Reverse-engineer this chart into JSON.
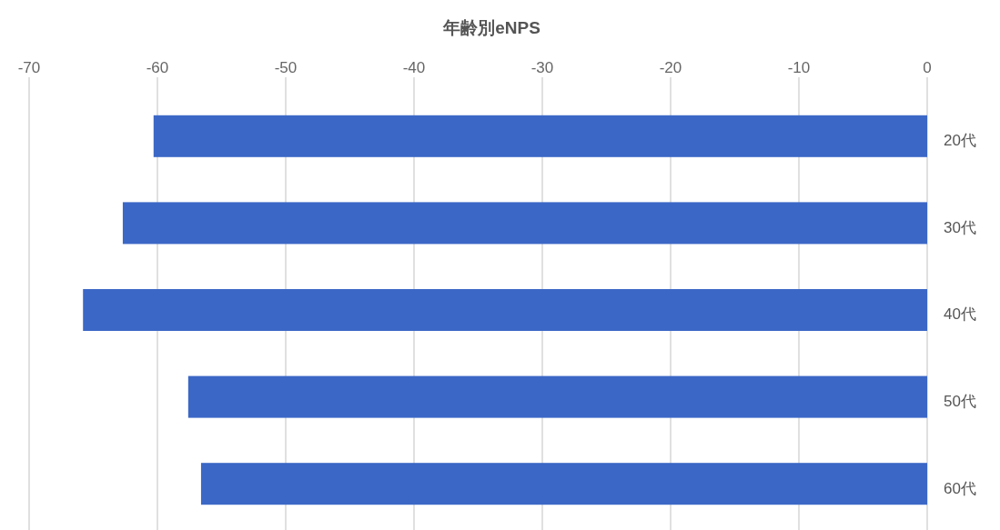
{
  "chart_data": {
    "type": "bar",
    "orientation": "horizontal",
    "title": "年齢別eNPS",
    "categories": [
      "20代",
      "30代",
      "40代",
      "50代",
      "60代"
    ],
    "values": [
      -60.3,
      -62.7,
      -65.8,
      -57.6,
      -56.6
    ],
    "color": "#3b67c6",
    "xlim": [
      -70,
      0
    ],
    "xticks": [
      -70,
      -60,
      -50,
      -40,
      -30,
      -20,
      -10,
      0
    ],
    "grid": "x"
  }
}
